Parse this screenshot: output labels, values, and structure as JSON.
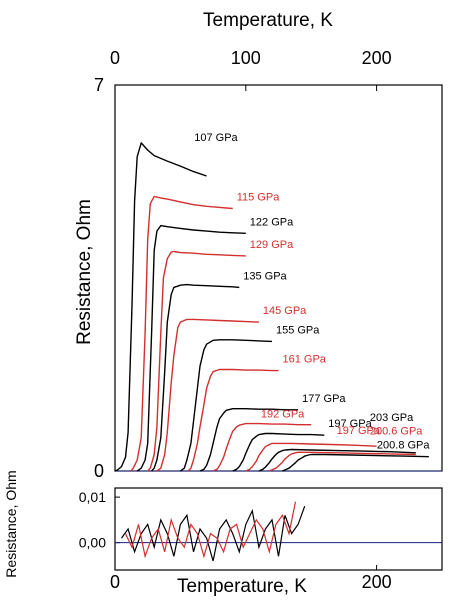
{
  "chart_data": [
    {
      "type": "line",
      "panel": "main",
      "title": "",
      "xlabel": "Temperature, K",
      "ylabel": "Resistance, Ohm",
      "x_axis_position": "top",
      "xlim": [
        0,
        250
      ],
      "ylim": [
        0,
        7
      ],
      "x_ticks": [
        0,
        100,
        200
      ],
      "y_ticks": [
        0,
        7
      ],
      "grid": false,
      "baseline": {
        "value": 0,
        "color": "#1a237e"
      },
      "series": [
        {
          "name": "107 GPa",
          "color": "#000000",
          "x": [
            0,
            2,
            5,
            8,
            10,
            13,
            15,
            17,
            20,
            25,
            30,
            40,
            50,
            60,
            70
          ],
          "y": [
            0,
            0.02,
            0.08,
            0.25,
            0.7,
            3.0,
            4.9,
            5.7,
            5.95,
            5.82,
            5.72,
            5.62,
            5.53,
            5.43,
            5.35
          ]
        },
        {
          "name": "115 GPa",
          "color": "#d32f2f",
          "x": [
            12,
            14,
            17,
            20,
            23,
            25,
            27,
            30,
            35,
            40,
            50,
            60,
            70,
            80,
            90
          ],
          "y": [
            0,
            0.05,
            0.2,
            0.6,
            2.5,
            4.2,
            4.85,
            4.98,
            4.95,
            4.93,
            4.88,
            4.83,
            4.8,
            4.78,
            4.76
          ]
        },
        {
          "name": "122 GPa",
          "color": "#000000",
          "x": [
            17,
            20,
            23,
            25,
            28,
            30,
            32,
            35,
            40,
            50,
            60,
            70,
            80,
            90,
            100
          ],
          "y": [
            0,
            0.05,
            0.2,
            0.5,
            2.5,
            4.0,
            4.35,
            4.45,
            4.43,
            4.4,
            4.37,
            4.35,
            4.33,
            4.32,
            4.31
          ]
        },
        {
          "name": "129 GPa",
          "color": "#d32f2f",
          "x": [
            25,
            27,
            30,
            32,
            35,
            37,
            40,
            43,
            45,
            50,
            60,
            70,
            80,
            90,
            100
          ],
          "y": [
            0,
            0.05,
            0.3,
            0.8,
            2.5,
            3.5,
            3.85,
            3.97,
            3.98,
            3.96,
            3.95,
            3.93,
            3.92,
            3.91,
            3.9
          ]
        },
        {
          "name": "135 GPa",
          "color": "#000000",
          "x": [
            28,
            30,
            32,
            35,
            38,
            40,
            43,
            45,
            50,
            55,
            60,
            70,
            80,
            90,
            95
          ],
          "y": [
            0,
            0.05,
            0.2,
            0.6,
            1.8,
            2.7,
            3.2,
            3.33,
            3.37,
            3.38,
            3.37,
            3.36,
            3.35,
            3.34,
            3.33
          ]
        },
        {
          "name": "145 GPa",
          "color": "#d32f2f",
          "x": [
            32,
            35,
            38,
            40,
            43,
            45,
            48,
            50,
            55,
            60,
            70,
            80,
            90,
            100,
            110
          ],
          "y": [
            0,
            0.05,
            0.3,
            0.7,
            1.6,
            2.1,
            2.6,
            2.7,
            2.75,
            2.75,
            2.74,
            2.73,
            2.72,
            2.71,
            2.7
          ]
        },
        {
          "name": "155 GPa",
          "color": "#000000",
          "x": [
            50,
            53,
            55,
            58,
            60,
            63,
            65,
            68,
            70,
            75,
            80,
            90,
            100,
            110,
            120
          ],
          "y": [
            0,
            0.05,
            0.2,
            0.5,
            0.9,
            1.5,
            1.9,
            2.2,
            2.3,
            2.37,
            2.38,
            2.38,
            2.37,
            2.36,
            2.35
          ]
        },
        {
          "name": "161 GPa",
          "color": "#d32f2f",
          "x": [
            56,
            58,
            60,
            63,
            65,
            68,
            70,
            73,
            75,
            80,
            90,
            100,
            110,
            120,
            125
          ],
          "y": [
            0,
            0.05,
            0.2,
            0.5,
            0.8,
            1.2,
            1.5,
            1.72,
            1.8,
            1.84,
            1.84,
            1.83,
            1.83,
            1.82,
            1.82
          ]
        },
        {
          "name": "177 GPa",
          "color": "#000000",
          "x": [
            65,
            68,
            70,
            73,
            75,
            78,
            80,
            83,
            85,
            90,
            100,
            110,
            120,
            130,
            140
          ],
          "y": [
            0,
            0.03,
            0.1,
            0.3,
            0.5,
            0.8,
            0.95,
            1.05,
            1.1,
            1.13,
            1.13,
            1.12,
            1.12,
            1.11,
            1.11
          ]
        },
        {
          "name": "192 GPa",
          "color": "#d32f2f",
          "x": [
            75,
            78,
            80,
            83,
            85,
            88,
            90,
            93,
            95,
            100,
            110,
            120,
            130,
            140,
            150
          ],
          "y": [
            0,
            0.03,
            0.1,
            0.25,
            0.4,
            0.6,
            0.72,
            0.8,
            0.83,
            0.86,
            0.86,
            0.85,
            0.85,
            0.84,
            0.84
          ]
        },
        {
          "name": "197 GPa",
          "color": "#000000",
          "x": [
            90,
            93,
            95,
            98,
            100,
            103,
            105,
            108,
            110,
            115,
            120,
            130,
            140,
            150,
            160
          ],
          "y": [
            0,
            0.03,
            0.08,
            0.2,
            0.32,
            0.48,
            0.57,
            0.63,
            0.66,
            0.68,
            0.68,
            0.67,
            0.66,
            0.66,
            0.65
          ]
        },
        {
          "name": "197 GPa",
          "color": "#d32f2f",
          "x": [
            100,
            103,
            105,
            108,
            110,
            113,
            115,
            118,
            120,
            125,
            135,
            150,
            165,
            180,
            200
          ],
          "y": [
            0,
            0.03,
            0.08,
            0.18,
            0.28,
            0.38,
            0.44,
            0.48,
            0.5,
            0.5,
            0.5,
            0.49,
            0.48,
            0.47,
            0.45
          ]
        },
        {
          "name": "203 GPa",
          "color": "#000000",
          "x": [
            110,
            113,
            115,
            118,
            120,
            123,
            125,
            128,
            130,
            135,
            150,
            170,
            190,
            210,
            230
          ],
          "y": [
            0,
            0.03,
            0.07,
            0.15,
            0.22,
            0.3,
            0.34,
            0.37,
            0.38,
            0.39,
            0.38,
            0.37,
            0.36,
            0.35,
            0.33
          ]
        },
        {
          "name": "200.6 GPa",
          "color": "#d32f2f",
          "x": [
            118,
            120,
            123,
            125,
            128,
            130,
            133,
            135,
            138,
            140,
            150,
            170,
            190,
            210,
            230
          ],
          "y": [
            0,
            0.02,
            0.05,
            0.09,
            0.16,
            0.22,
            0.28,
            0.31,
            0.33,
            0.34,
            0.34,
            0.33,
            0.32,
            0.31,
            0.3
          ]
        },
        {
          "name": "200.8 GPa",
          "color": "#000000",
          "x": [
            128,
            130,
            133,
            135,
            138,
            140,
            143,
            145,
            148,
            150,
            160,
            180,
            200,
            220,
            240
          ],
          "y": [
            0,
            0.02,
            0.05,
            0.09,
            0.15,
            0.2,
            0.24,
            0.27,
            0.29,
            0.3,
            0.3,
            0.29,
            0.28,
            0.27,
            0.26
          ]
        }
      ]
    },
    {
      "type": "line",
      "panel": "inset",
      "title": "",
      "xlabel": "Temperature, K",
      "ylabel": "Resistance, Ohm",
      "xlim": [
        0,
        250
      ],
      "ylim": [
        -0.006,
        0.012
      ],
      "x_ticks": [
        0,
        200
      ],
      "x_tick_labels": [
        "0",
        "200"
      ],
      "y_ticks": [
        0.0,
        0.01
      ],
      "y_tick_labels": [
        "0,00",
        "0,01"
      ],
      "grid": false,
      "baseline": {
        "value": 0,
        "color": "#1a237e"
      },
      "series": [
        {
          "name": "",
          "color": "#000000",
          "x": [
            5,
            10,
            15,
            20,
            25,
            30,
            35,
            40,
            45,
            50,
            55,
            60,
            65,
            70,
            75,
            80,
            85,
            90,
            95,
            100,
            105,
            110,
            115,
            120,
            125,
            130,
            135,
            140,
            145
          ],
          "y": [
            0.001,
            0.003,
            -0.002,
            0.002,
            0.004,
            -0.001,
            0.005,
            0.002,
            -0.003,
            0.004,
            0.006,
            -0.002,
            0.003,
            0.001,
            -0.004,
            0.003,
            0.005,
            0.002,
            -0.002,
            0.004,
            0.007,
            -0.001,
            0.003,
            0.005,
            -0.003,
            0.006,
            0.002,
            0.004,
            0.008
          ]
        },
        {
          "name": "",
          "color": "#d32f2f",
          "x": [
            8,
            13,
            18,
            23,
            28,
            33,
            38,
            43,
            48,
            53,
            58,
            63,
            68,
            73,
            78,
            83,
            88,
            93,
            98,
            103,
            108,
            113,
            118,
            123,
            128,
            133,
            138
          ],
          "y": [
            0.002,
            -0.001,
            0.004,
            -0.003,
            0.001,
            0.003,
            -0.002,
            0.005,
            0.001,
            -0.001,
            0.004,
            0.002,
            -0.003,
            0.002,
            0.001,
            -0.002,
            0.003,
            0.004,
            -0.001,
            0.002,
            0.005,
            0.003,
            -0.002,
            0.004,
            0.006,
            0.002,
            0.009
          ]
        }
      ]
    }
  ]
}
